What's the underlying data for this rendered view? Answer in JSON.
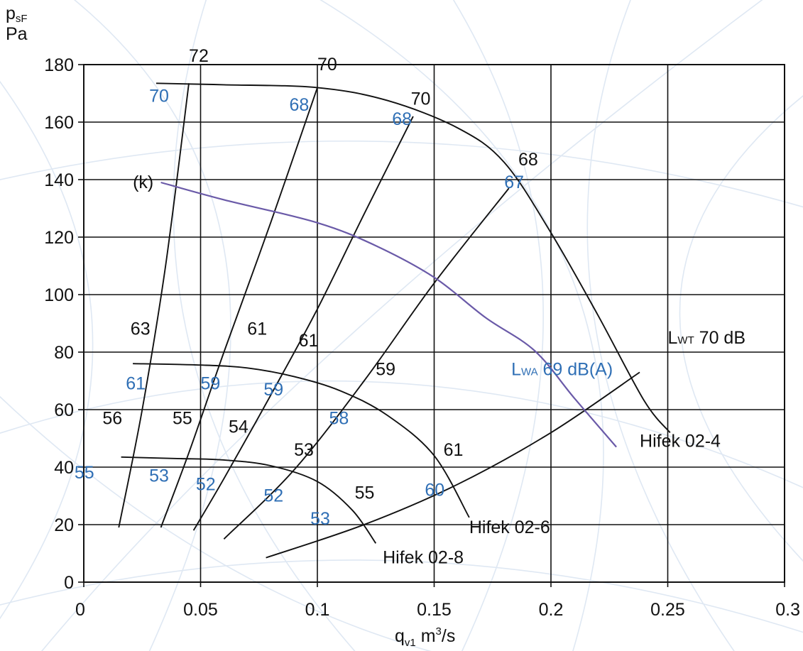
{
  "colors": {
    "black": "#111111",
    "blue": "#2f6fb5",
    "purple": "#6a5aa8",
    "grid": "#111111",
    "watermark": "#dfe8f3"
  },
  "chart_data": {
    "type": "line",
    "title": "",
    "ylabel_top": "p",
    "ylabel_sub": "sF",
    "ylabel_unit": "Pa",
    "xlabel_main": "q",
    "xlabel_sub": "v1",
    "xlabel_unit": " m",
    "xlabel_sup": "3",
    "xlabel_tail": "/s",
    "xlim": [
      0,
      0.3
    ],
    "ylim": [
      0,
      180
    ],
    "grid": true,
    "x_ticks": [
      0,
      0.05,
      0.1,
      0.15,
      0.2,
      0.25,
      0.3
    ],
    "x_tick_labels": [
      "0",
      "0.05",
      "0.1",
      "0.15",
      "0.2",
      "0.25",
      "0.3"
    ],
    "y_ticks": [
      0,
      20,
      40,
      60,
      80,
      100,
      120,
      140,
      160,
      180
    ],
    "y_tick_labels": [
      "0",
      "20",
      "40",
      "60",
      "80",
      "100",
      "120",
      "140",
      "160",
      "180"
    ],
    "fan_curves": [
      {
        "name": "Hifek 02-4",
        "points": [
          [
            0.031,
            173.5
          ],
          [
            0.06,
            173
          ],
          [
            0.1,
            172
          ],
          [
            0.13,
            167.5
          ],
          [
            0.16,
            158
          ],
          [
            0.18,
            146
          ],
          [
            0.2,
            121.5
          ],
          [
            0.22,
            93
          ],
          [
            0.24,
            63
          ],
          [
            0.251,
            52
          ]
        ]
      },
      {
        "name": "Hifek 02-6",
        "points": [
          [
            0.021,
            76
          ],
          [
            0.05,
            75.5
          ],
          [
            0.07,
            74.5
          ],
          [
            0.09,
            71.5
          ],
          [
            0.11,
            66.5
          ],
          [
            0.13,
            58
          ],
          [
            0.15,
            44
          ],
          [
            0.165,
            22.5
          ]
        ]
      },
      {
        "name": "Hifek 02-8",
        "points": [
          [
            0.016,
            43.5
          ],
          [
            0.04,
            43
          ],
          [
            0.06,
            42.5
          ],
          [
            0.08,
            40.5
          ],
          [
            0.1,
            35
          ],
          [
            0.115,
            25
          ],
          [
            0.125,
            13.5
          ]
        ]
      }
    ],
    "system_curves": [
      {
        "points": [
          [
            0.015,
            19
          ],
          [
            0.025,
            60
          ],
          [
            0.035,
            110
          ],
          [
            0.045,
            173.5
          ]
        ]
      },
      {
        "points": [
          [
            0.033,
            19
          ],
          [
            0.045,
            45
          ],
          [
            0.06,
            80
          ],
          [
            0.08,
            125
          ],
          [
            0.1,
            172
          ]
        ]
      },
      {
        "points": [
          [
            0.047,
            18
          ],
          [
            0.06,
            36
          ],
          [
            0.08,
            65
          ],
          [
            0.1,
            95
          ],
          [
            0.12,
            128
          ],
          [
            0.141,
            162
          ]
        ]
      },
      {
        "points": [
          [
            0.06,
            15
          ],
          [
            0.09,
            39
          ],
          [
            0.12,
            70
          ],
          [
            0.15,
            104
          ],
          [
            0.182,
            137
          ]
        ]
      },
      {
        "points": [
          [
            0.078,
            8.5
          ],
          [
            0.12,
            20
          ],
          [
            0.16,
            34
          ],
          [
            0.2,
            52
          ],
          [
            0.238,
            73
          ]
        ]
      }
    ],
    "lwa_curve": {
      "points": [
        [
          0.033,
          139
        ],
        [
          0.06,
          133
        ],
        [
          0.1,
          125
        ],
        [
          0.125,
          117
        ],
        [
          0.15,
          106
        ],
        [
          0.172,
          92
        ],
        [
          0.193,
          80.5
        ],
        [
          0.21,
          64
        ],
        [
          0.228,
          47
        ]
      ]
    },
    "lwt_label": {
      "main": "L",
      "sub": "WT",
      "text": " 70 dB",
      "x": 0.25,
      "y": 83
    },
    "lwa_label": {
      "main": "L",
      "sub": "WA",
      "text": " 69 dB(A)",
      "x": 0.183,
      "y": 72
    },
    "curve_labels": [
      {
        "text": "Hifek 02-4",
        "x": 0.238,
        "y": 47
      },
      {
        "text": "Hifek 02-6",
        "x": 0.165,
        "y": 17
      },
      {
        "text": "Hifek 02-8",
        "x": 0.128,
        "y": 6.5
      },
      {
        "text": "(k)",
        "x": 0.021,
        "y": 137
      }
    ],
    "black_numbers": [
      {
        "text": "72",
        "x": 0.045,
        "y": 181
      },
      {
        "text": "70",
        "x": 0.1,
        "y": 178
      },
      {
        "text": "70",
        "x": 0.14,
        "y": 166
      },
      {
        "text": "68",
        "x": 0.186,
        "y": 145
      },
      {
        "text": "63",
        "x": 0.02,
        "y": 86
      },
      {
        "text": "61",
        "x": 0.07,
        "y": 86
      },
      {
        "text": "61",
        "x": 0.092,
        "y": 82
      },
      {
        "text": "59",
        "x": 0.125,
        "y": 72
      },
      {
        "text": "56",
        "x": 0.008,
        "y": 55
      },
      {
        "text": "55",
        "x": 0.038,
        "y": 55
      },
      {
        "text": "54",
        "x": 0.062,
        "y": 52
      },
      {
        "text": "53",
        "x": 0.09,
        "y": 44
      },
      {
        "text": "61",
        "x": 0.154,
        "y": 44
      },
      {
        "text": "55",
        "x": 0.116,
        "y": 29
      }
    ],
    "blue_numbers": [
      {
        "text": "70",
        "x": 0.028,
        "y": 167
      },
      {
        "text": "68",
        "x": 0.088,
        "y": 164
      },
      {
        "text": "68",
        "x": 0.132,
        "y": 159
      },
      {
        "text": "67",
        "x": 0.18,
        "y": 137
      },
      {
        "text": "61",
        "x": 0.018,
        "y": 67
      },
      {
        "text": "59",
        "x": 0.05,
        "y": 67
      },
      {
        "text": "59",
        "x": 0.077,
        "y": 65
      },
      {
        "text": "58",
        "x": 0.105,
        "y": 55
      },
      {
        "text": "55",
        "x": -0.004,
        "y": 36
      },
      {
        "text": "53",
        "x": 0.028,
        "y": 35
      },
      {
        "text": "52",
        "x": 0.048,
        "y": 32
      },
      {
        "text": "52",
        "x": 0.077,
        "y": 28
      },
      {
        "text": "60",
        "x": 0.146,
        "y": 30
      },
      {
        "text": "53",
        "x": 0.097,
        "y": 20
      }
    ]
  }
}
